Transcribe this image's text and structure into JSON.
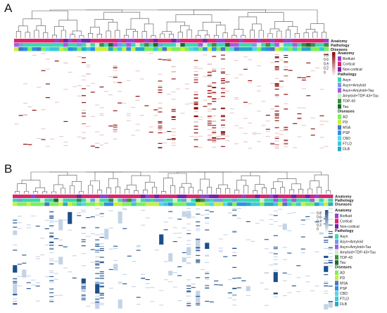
{
  "panels": [
    {
      "letter": "A",
      "heat_color": "#8B0000",
      "heat_light": "#E8C8C8"
    },
    {
      "letter": "B",
      "heat_color": "#1A4F8A",
      "heat_light": "#C4D3E6"
    }
  ],
  "track_labels": [
    "Anatomy",
    "Pathology",
    "Diseases"
  ],
  "colorbar_ticks": [
    "0.8",
    "0.6",
    "0.4",
    "0.2",
    "0"
  ],
  "legend": {
    "anatomy": {
      "title": "Anatomy",
      "items": [
        {
          "label": "Biofluid",
          "color": "#9B3FD0"
        },
        {
          "label": "Cortical",
          "color": "#E0226E"
        },
        {
          "label": "Non-cortical",
          "color": "#7A1FA8"
        }
      ]
    },
    "pathology": {
      "title": "Pathology",
      "items": [
        {
          "label": "Asyn",
          "color": "#38D9B0"
        },
        {
          "label": "Asyn+Amyloid",
          "color": "#6FA0E8"
        },
        {
          "label": "Asyn+Amyloid+Tau",
          "color": "#A05FE0"
        },
        {
          "label": "Amyloid+TDP-43+Tau",
          "color": "#C8F0C8"
        },
        {
          "label": "TDP-43",
          "color": "#3D8F3D"
        },
        {
          "label": "Tau",
          "color": "#1A6B2A"
        }
      ]
    },
    "diseases": {
      "title": "Diseases",
      "items": [
        {
          "label": "AD",
          "color": "#7CF05A"
        },
        {
          "label": "PD",
          "color": "#C8F03C"
        },
        {
          "label": "MSA",
          "color": "#4B74C8"
        },
        {
          "label": "PSP",
          "color": "#2E8FE8"
        },
        {
          "label": "CBD",
          "color": "#4FD8E8"
        },
        {
          "label": "FTLD",
          "color": "#3BC8D8"
        },
        {
          "label": "DLB",
          "color": "#2AA8C8"
        }
      ]
    }
  }
}
